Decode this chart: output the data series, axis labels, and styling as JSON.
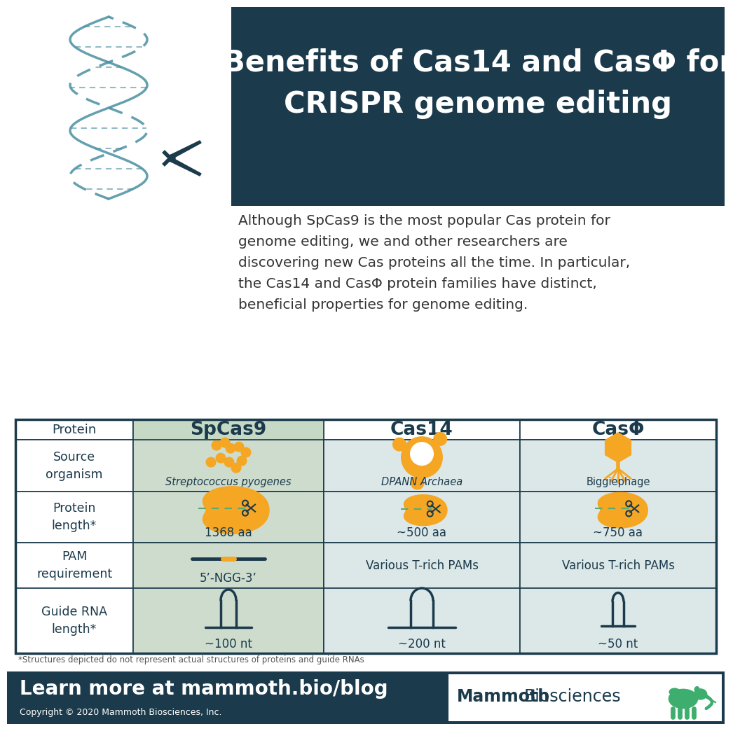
{
  "title_line1": "Benefits of Cas14 and CasΦ for",
  "title_line2": "CRISPR genome editing",
  "title_bg": "#1b3a4b",
  "title_color": "#ffffff",
  "body_lines": [
    "Although SpCas9 is the most popular Cas protein for",
    "genome editing, we and other researchers are",
    "discovering new Cas proteins all the time. In particular,",
    "the Cas14 and CasΦ protein families have distinct,",
    "beneficial properties for genome editing."
  ],
  "body_text_color": "#333333",
  "col_headers": [
    "SpCas9",
    "Cas14",
    "CasΦ"
  ],
  "row_labels": [
    "Protein",
    "Source\norganism",
    "Protein\nlength*",
    "PAM\nrequirement",
    "Guide RNA\nlength*"
  ],
  "source_organisms_italic": [
    "Streptococcus pyogenes",
    "DPANN Archaea",
    ""
  ],
  "source_organisms_normal": [
    "",
    "",
    "Biggiephage"
  ],
  "protein_lengths": [
    "1368 aa",
    "~500 aa",
    "~750 aa"
  ],
  "pam_spcas9": "5’-NGG-3’",
  "pam_others": "Various T-rich PAMs",
  "guide_rna_lengths": [
    "~100 nt",
    "~200 nt",
    "~50 nt"
  ],
  "header_row_bg": "#c5d9c5",
  "spcas9_col_bg": "#cddccd",
  "table_bg": "#dce8e8",
  "table_border_color": "#1b3a4b",
  "table_text_color": "#1b3a4b",
  "orange": "#f5a623",
  "dark_teal": "#1b3a4b",
  "teal_dna": "#4a8fa0",
  "green_mammoth": "#3dae6e",
  "footer_bg": "#1b3a4b",
  "footer_text": "Learn more at mammoth.bio/blog",
  "footer_sub": "Copyright © 2020 Mammoth Biosciences, Inc.",
  "footnote": "*Structures depicted do not represent actual structures of proteins and guide RNAs",
  "bg_color": "#ffffff"
}
